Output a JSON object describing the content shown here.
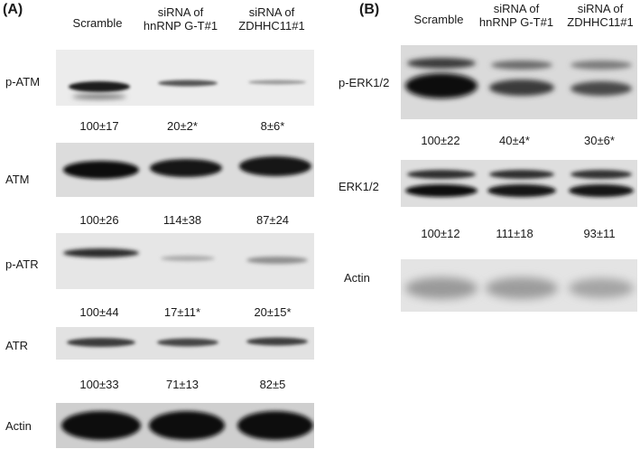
{
  "panel_a": {
    "label": "(A)",
    "columns": [
      "Scramble",
      "siRNA of\nhnRNP G-T#1",
      "siRNA of\nZDHHC11#1"
    ],
    "rows": [
      {
        "label": "p-ATM",
        "quant": [
          "100±17",
          "20±2*",
          "8±6*"
        ]
      },
      {
        "label": "ATM",
        "quant": [
          "100±26",
          "114±38",
          "87±24"
        ]
      },
      {
        "label": "p-ATR",
        "quant": [
          "100±44",
          "17±11*",
          "20±15*"
        ]
      },
      {
        "label": "ATR",
        "quant": [
          "100±33",
          "71±13",
          "82±5"
        ]
      },
      {
        "label": "Actin"
      }
    ]
  },
  "panel_b": {
    "label": "(B)",
    "columns": [
      "Scramble",
      "siRNA of\nhnRNP G-T#1",
      "siRNA of\nZDHHC11#1"
    ],
    "rows": [
      {
        "label": "p-ERK1/2",
        "quant": [
          "100±22",
          "40±4*",
          "30±6*"
        ]
      },
      {
        "label": "ERK1/2",
        "quant": [
          "100±12",
          "111±18",
          "93±11"
        ]
      },
      {
        "label": "Actin"
      }
    ]
  }
}
